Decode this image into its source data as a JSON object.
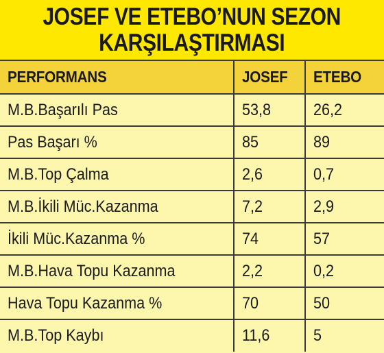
{
  "title": {
    "line1": "JOSEF VE ETEBO’NUN SEZON",
    "line2": "KARŞILAŞTIRMASI"
  },
  "table": {
    "headers": [
      "PERFORMANS",
      "JOSEF",
      "ETEBO"
    ],
    "rows": [
      [
        "M.B.Başarılı Pas",
        "53,8",
        "26,2"
      ],
      [
        "Pas Başarı %",
        "85",
        "89"
      ],
      [
        "M.B.Top Çalma",
        "2,6",
        "0,7"
      ],
      [
        "M.B.İkili Müc.Kazanma",
        "7,2",
        "2,9"
      ],
      [
        "İkili Müc.Kazanma %",
        "74",
        "57"
      ],
      [
        "M.B.Hava Topu Kazanma",
        "2,2",
        "0,2"
      ],
      [
        "Hava Topu Kazanma %",
        "70",
        "50"
      ],
      [
        "M.B.Top Kaybı",
        "11,6",
        "5"
      ]
    ]
  },
  "colors": {
    "title_background": "#ffe800",
    "header_background": "#f4d23a",
    "cell_background": "#fdf6ad",
    "border": "#3a3a3a",
    "text": "#1a1a1a"
  }
}
